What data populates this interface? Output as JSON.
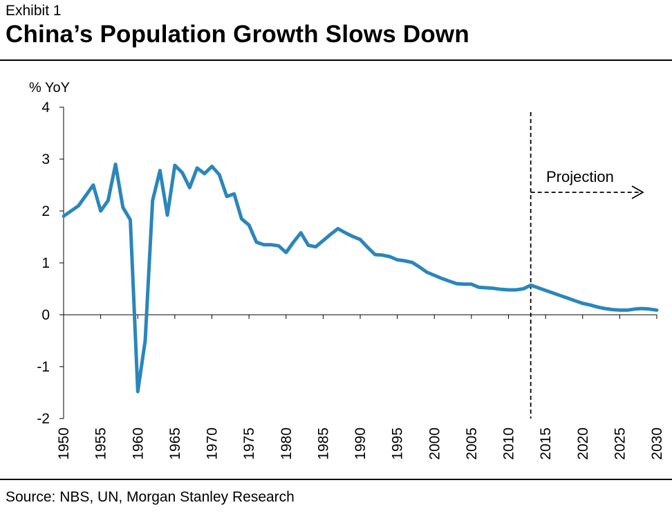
{
  "header": {
    "exhibit": "Exhibit 1",
    "title": "China’s Population Growth Slows Down"
  },
  "footer": {
    "source": "Source: NBS, UN, Morgan Stanley Research"
  },
  "chart_data": {
    "type": "line",
    "title": "China’s Population Growth Slows Down",
    "xlabel": "",
    "ylabel": "% YoY",
    "xlim": [
      1950,
      2030
    ],
    "ylim": [
      -2,
      4
    ],
    "yticks": [
      4,
      3,
      2,
      1,
      0,
      -1,
      -2
    ],
    "xticks": [
      1950,
      1955,
      1960,
      1965,
      1970,
      1975,
      1980,
      1985,
      1990,
      1995,
      2000,
      2005,
      2010,
      2015,
      2020,
      2025,
      2030
    ],
    "grid": false,
    "line_color": "#2a86bb",
    "annotation": {
      "text": "Projection",
      "start_year": 2013
    },
    "series": [
      {
        "x": [
          1950,
          1951,
          1952,
          1953,
          1954,
          1955,
          1956,
          1957,
          1958,
          1959,
          1960,
          1961,
          1962,
          1963,
          1964,
          1965,
          1966,
          1967,
          1968,
          1969,
          1970,
          1971,
          1972,
          1973,
          1974,
          1975,
          1976,
          1977,
          1978,
          1979,
          1980,
          1981,
          1982,
          1983,
          1984,
          1985,
          1986,
          1987,
          1988,
          1989,
          1990,
          1991,
          1992,
          1993,
          1994,
          1995,
          1996,
          1997,
          1998,
          1999,
          2000,
          2001,
          2002,
          2003,
          2004,
          2005,
          2006,
          2007,
          2008,
          2009,
          2010,
          2011,
          2012,
          2013,
          2014,
          2015,
          2016,
          2017,
          2018,
          2019,
          2020,
          2021,
          2022,
          2023,
          2024,
          2025,
          2026,
          2027,
          2028,
          2029,
          2030
        ],
        "values": [
          1.9,
          2.0,
          2.1,
          2.3,
          2.5,
          2.0,
          2.2,
          2.9,
          2.07,
          1.83,
          -1.48,
          -0.5,
          2.2,
          2.78,
          1.92,
          2.88,
          2.74,
          2.45,
          2.83,
          2.72,
          2.86,
          2.7,
          2.28,
          2.33,
          1.85,
          1.73,
          1.4,
          1.35,
          1.35,
          1.33,
          1.2,
          1.4,
          1.58,
          1.34,
          1.31,
          1.43,
          1.55,
          1.66,
          1.58,
          1.51,
          1.45,
          1.3,
          1.16,
          1.15,
          1.12,
          1.06,
          1.04,
          1.01,
          0.92,
          0.82,
          0.76,
          0.7,
          0.65,
          0.6,
          0.59,
          0.59,
          0.53,
          0.52,
          0.51,
          0.49,
          0.48,
          0.48,
          0.5,
          0.57,
          0.52,
          0.47,
          0.42,
          0.37,
          0.32,
          0.27,
          0.22,
          0.19,
          0.15,
          0.12,
          0.1,
          0.09,
          0.09,
          0.11,
          0.12,
          0.11,
          0.09
        ]
      }
    ]
  }
}
